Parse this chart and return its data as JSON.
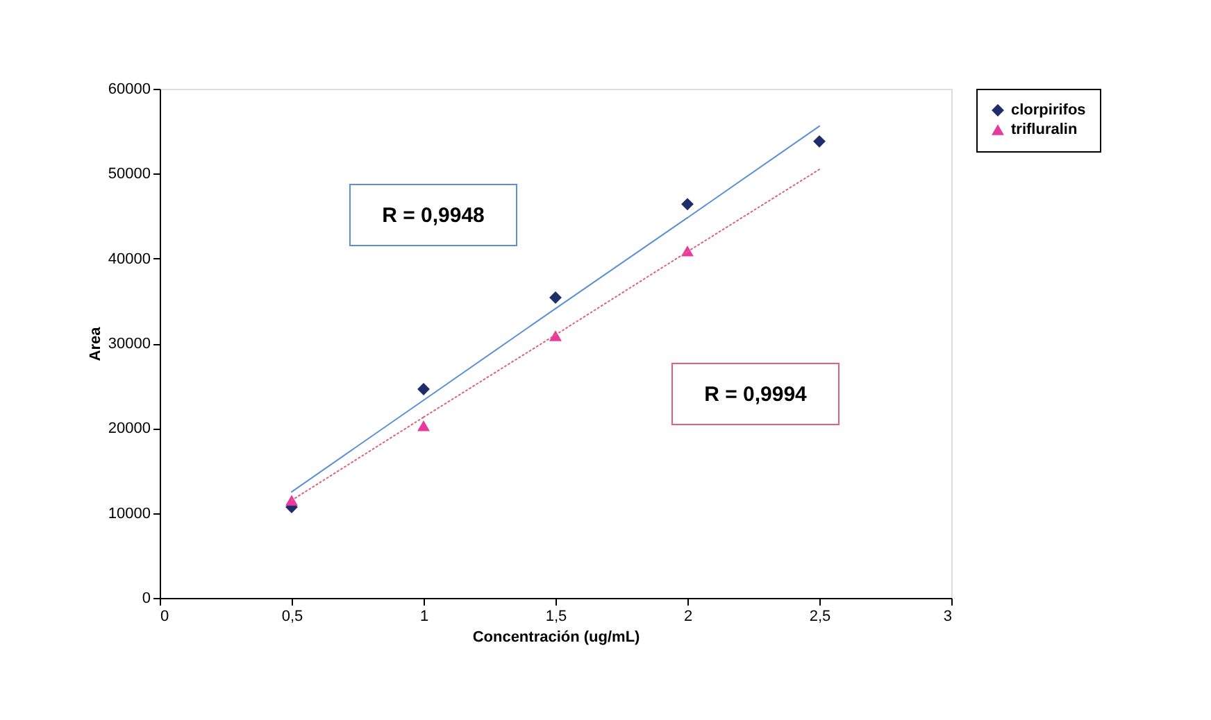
{
  "chart_data": {
    "type": "scatter",
    "xlabel": "Concentración (ug/mL)",
    "ylabel": "Area",
    "x": [
      0.5,
      1,
      1.5,
      2,
      2.5
    ],
    "series": [
      {
        "name": "clorpirifos",
        "color": "#1f2d6b",
        "marker": "diamond",
        "values": [
          10700,
          24600,
          35400,
          46400,
          53800
        ]
      },
      {
        "name": "trifluralin",
        "color": "#e8399e",
        "marker": "triangle",
        "values": [
          11500,
          20300,
          30900,
          40900,
          null
        ]
      },
      {
        "type": "line",
        "color": "#5b8fd6",
        "line_style": "solid",
        "values": [
          12500,
          23300,
          34100,
          44800,
          55600
        ]
      },
      {
        "type": "line",
        "color": "#e0607a",
        "line_style": "dotted",
        "values": [
          11500,
          21300,
          31000,
          40800,
          50500
        ]
      }
    ],
    "annotations": [
      "R = 0,9948",
      "R = 0,9994"
    ],
    "xlim": [
      0,
      3
    ],
    "xticks": [
      0,
      {
        "value": 0.5,
        "label": "0,5"
      },
      1,
      {
        "value": 1.5,
        "label": "1,5"
      },
      2,
      {
        "value": 2.5,
        "label": "2,5"
      },
      3
    ],
    "ylim": [
      0,
      60000
    ],
    "yticks": [
      0,
      10000,
      20000,
      30000,
      40000,
      50000,
      60000
    ],
    "grid": false,
    "legend": "right"
  }
}
